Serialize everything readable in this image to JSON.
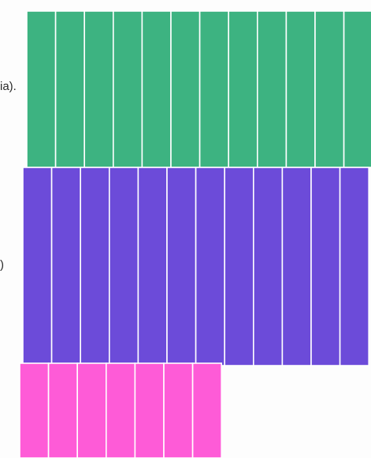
{
  "margin_text": {
    "line_1": "ia).",
    "line_2": ")"
  },
  "strip_rows": [
    {
      "name": "green-row",
      "color": "#3db381",
      "count": 12
    },
    {
      "name": "purple-row",
      "color": "#6c4bd9",
      "count": 12
    },
    {
      "name": "pink-row",
      "color": "#fe5bd7",
      "count": 7
    }
  ],
  "colors": {
    "divider": "#ffffff",
    "page": "#fdfdfd"
  }
}
